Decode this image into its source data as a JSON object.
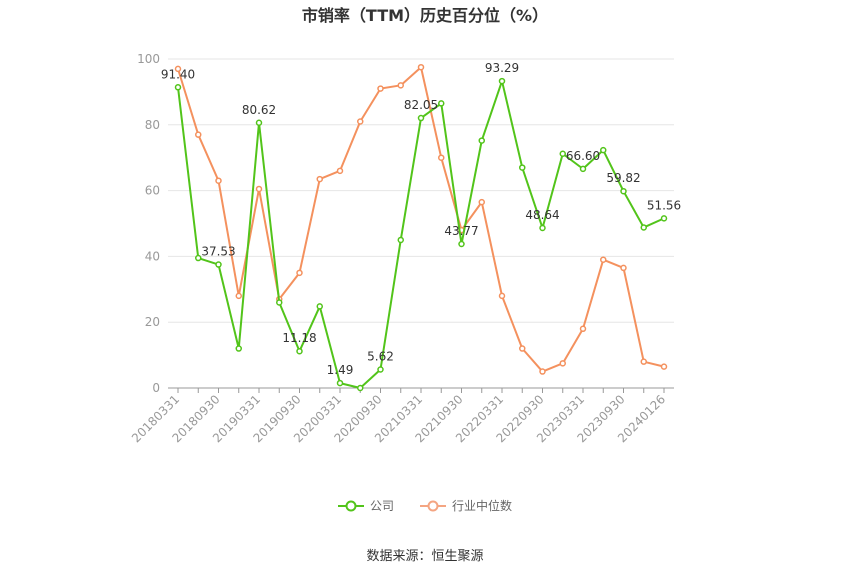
{
  "chart_data": {
    "type": "line",
    "title": "市销率（TTM）历史百分位（%）",
    "ylim": [
      0,
      100
    ],
    "yticks": [
      0,
      20,
      40,
      60,
      80,
      100
    ],
    "x": [
      "20180331",
      "20180630",
      "20180930",
      "20181231",
      "20190331",
      "20190630",
      "20190930",
      "20191231",
      "20200331",
      "20200630",
      "20200930",
      "20201231",
      "20210331",
      "20210630",
      "20210930",
      "20211231",
      "20220331",
      "20220630",
      "20220930",
      "20221231",
      "20230331",
      "20230630",
      "20230930",
      "20231231",
      "20240126"
    ],
    "xtick_labels": [
      "20180331",
      "20180930",
      "20190331",
      "20190930",
      "20200331",
      "20200930",
      "20210331",
      "20210930",
      "20220331",
      "20220930",
      "20230331",
      "20230930",
      "20240126"
    ],
    "series": [
      {
        "name": "公司",
        "color": "#52c41a",
        "values": [
          91.4,
          39.5,
          37.53,
          12.0,
          80.62,
          26.0,
          11.18,
          24.8,
          1.49,
          0.0,
          5.62,
          45.0,
          82.05,
          86.5,
          43.77,
          75.2,
          93.29,
          67.0,
          48.64,
          71.2,
          66.6,
          72.3,
          59.82,
          48.8,
          51.56
        ],
        "labels": {
          "0": "91.40",
          "2": "37.53",
          "4": "80.62",
          "6": "11.18",
          "8": "1.49",
          "10": "5.62",
          "12": "82.05",
          "14": "43.77",
          "16": "93.29",
          "18": "48.64",
          "20": "66.60",
          "22": "59.82",
          "24": "51.56"
        }
      },
      {
        "name": "行业中位数",
        "color": "#f4915e",
        "values": [
          97.0,
          77.0,
          63.0,
          28.0,
          60.5,
          27.0,
          35.0,
          63.5,
          66.0,
          81.0,
          91.0,
          92.0,
          97.5,
          70.0,
          48.0,
          56.5,
          28.0,
          12.0,
          5.0,
          7.5,
          18.0,
          39.0,
          36.5,
          8.0,
          6.5
        ]
      }
    ]
  },
  "legend": {
    "company": "公司",
    "industry": "行业中位数"
  },
  "source": "数据来源：恒生聚源"
}
